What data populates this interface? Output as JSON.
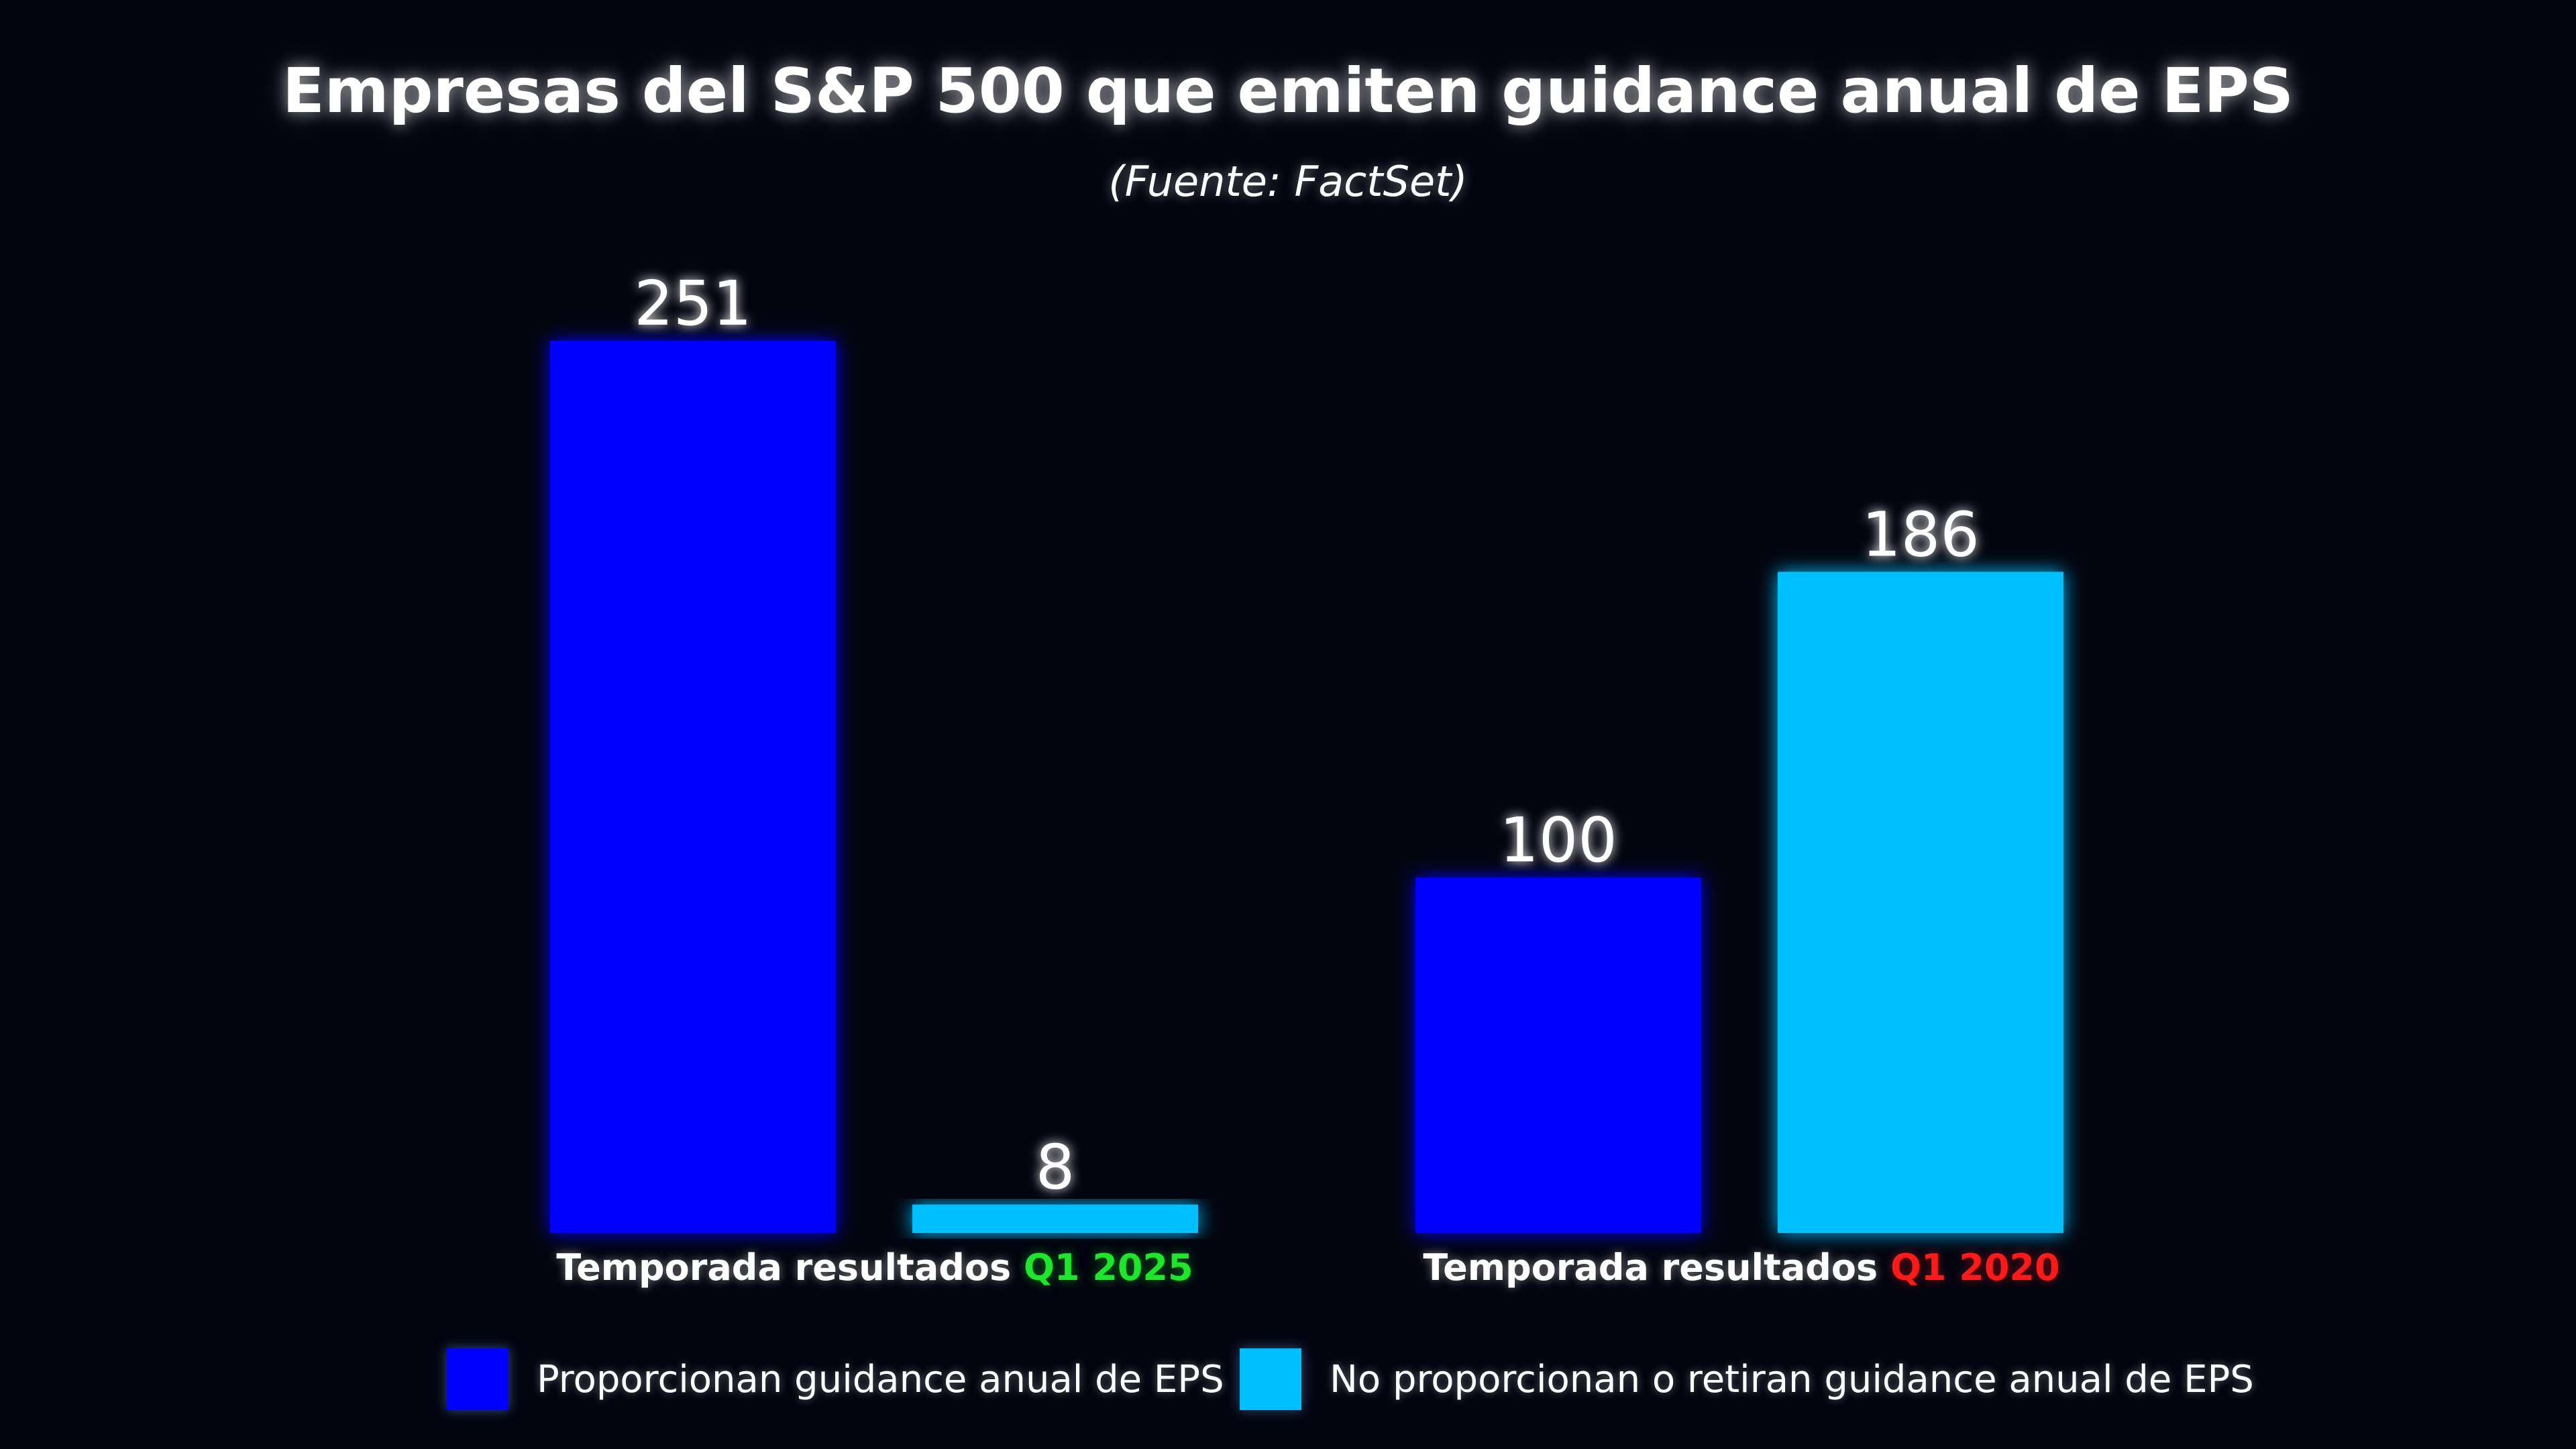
{
  "chart_data": {
    "type": "bar",
    "title": "Empresas del S&P 500 que emiten guidance anual de EPS",
    "subtitle": "(Fuente: FactSet)",
    "categories": [
      {
        "prefix": "Temporada resultados",
        "highlight": "Q1 2025",
        "highlight_color": "#1ee62a"
      },
      {
        "prefix": "Temporada resultados",
        "highlight": "Q1 2020",
        "highlight_color": "#ff1a1a"
      }
    ],
    "series": [
      {
        "name": "Proporcionan guidance anual de EPS",
        "color": "#0000ff",
        "values": [
          251,
          100
        ]
      },
      {
        "name": "No proporcionan o retiran guidance anual de EPS",
        "color": "#00bfff",
        "values": [
          8,
          186
        ]
      }
    ],
    "ylim": [
      0,
      251
    ],
    "grid": false,
    "legend_position": "bottom"
  }
}
